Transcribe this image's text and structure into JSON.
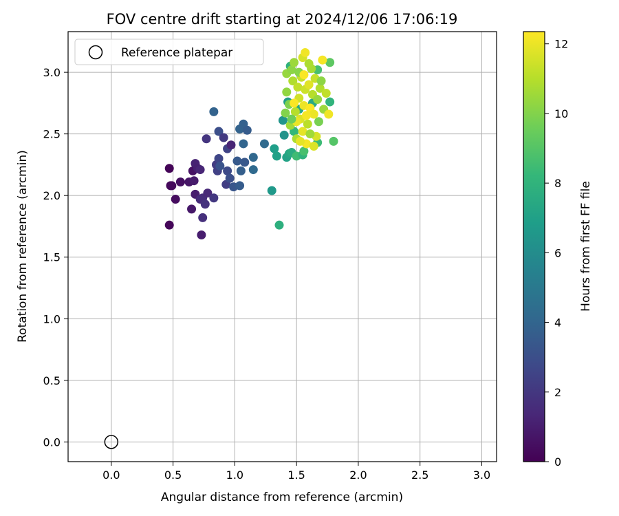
{
  "chart_data": {
    "type": "scatter",
    "title": "FOV centre drift starting at 2024/12/06 17:06:19",
    "xlabel": "Angular distance from reference (arcmin)",
    "ylabel": "Rotation from reference (arcmin)",
    "xlim": [
      -0.35,
      3.12
    ],
    "ylim": [
      -0.16,
      3.33
    ],
    "xticks": [
      "0.0",
      "0.5",
      "1.0",
      "1.5",
      "2.0",
      "2.5",
      "3.0"
    ],
    "yticks": [
      "0.0",
      "0.5",
      "1.0",
      "1.5",
      "2.0",
      "2.5",
      "3.0"
    ],
    "grid": true,
    "legend": {
      "placement": "top-left",
      "entries": [
        {
          "label": "Reference platepar",
          "marker": "open-circle"
        }
      ]
    },
    "reference_point": {
      "x": 0.0,
      "y": 0.0
    },
    "colorbar": {
      "label": "Hours from first FF file",
      "range": [
        0,
        12.35
      ],
      "ticks": [
        "0",
        "2",
        "4",
        "6",
        "8",
        "10",
        "12"
      ],
      "colormap": [
        "#440154",
        "#482878",
        "#3e4989",
        "#31688e",
        "#26828e",
        "#1f9e89",
        "#35b779",
        "#6ece58",
        "#b5de2b",
        "#fde725"
      ]
    },
    "points": [
      {
        "x": 0.47,
        "y": 2.22,
        "t": 0.1
      },
      {
        "x": 0.48,
        "y": 2.08,
        "t": 0.2
      },
      {
        "x": 0.49,
        "y": 2.08,
        "t": 0.3
      },
      {
        "x": 0.47,
        "y": 1.76,
        "t": 0.2
      },
      {
        "x": 0.52,
        "y": 1.97,
        "t": 0.4
      },
      {
        "x": 0.56,
        "y": 2.11,
        "t": 0.5
      },
      {
        "x": 0.63,
        "y": 2.11,
        "t": 0.7
      },
      {
        "x": 0.66,
        "y": 2.2,
        "t": 0.6
      },
      {
        "x": 0.67,
        "y": 2.12,
        "t": 0.9
      },
      {
        "x": 0.65,
        "y": 1.89,
        "t": 0.8
      },
      {
        "x": 0.68,
        "y": 2.01,
        "t": 1.0
      },
      {
        "x": 0.68,
        "y": 2.26,
        "t": 1.2
      },
      {
        "x": 0.7,
        "y": 2.22,
        "t": 1.1
      },
      {
        "x": 0.72,
        "y": 2.21,
        "t": 1.3
      },
      {
        "x": 0.72,
        "y": 1.97,
        "t": 1.5
      },
      {
        "x": 0.73,
        "y": 1.68,
        "t": 1.0
      },
      {
        "x": 0.74,
        "y": 1.98,
        "t": 1.6
      },
      {
        "x": 0.74,
        "y": 1.82,
        "t": 1.7
      },
      {
        "x": 0.76,
        "y": 1.93,
        "t": 1.8
      },
      {
        "x": 0.77,
        "y": 2.46,
        "t": 1.9
      },
      {
        "x": 0.78,
        "y": 2.02,
        "t": 1.4
      },
      {
        "x": 0.83,
        "y": 1.98,
        "t": 2.0
      },
      {
        "x": 0.85,
        "y": 2.25,
        "t": 2.2
      },
      {
        "x": 0.86,
        "y": 2.2,
        "t": 2.4
      },
      {
        "x": 0.87,
        "y": 2.3,
        "t": 2.6
      },
      {
        "x": 0.87,
        "y": 2.52,
        "t": 3.0
      },
      {
        "x": 0.88,
        "y": 2.24,
        "t": 3.2
      },
      {
        "x": 0.91,
        "y": 2.47,
        "t": 2.1
      },
      {
        "x": 0.93,
        "y": 2.09,
        "t": 2.3
      },
      {
        "x": 0.94,
        "y": 2.38,
        "t": 2.5
      },
      {
        "x": 0.94,
        "y": 2.2,
        "t": 2.8
      },
      {
        "x": 0.96,
        "y": 2.14,
        "t": 3.0
      },
      {
        "x": 0.97,
        "y": 2.41,
        "t": 1.3
      },
      {
        "x": 0.99,
        "y": 2.07,
        "t": 3.3
      },
      {
        "x": 1.02,
        "y": 2.28,
        "t": 3.5
      },
      {
        "x": 1.04,
        "y": 2.08,
        "t": 3.6
      },
      {
        "x": 1.04,
        "y": 2.54,
        "t": 3.9
      },
      {
        "x": 1.05,
        "y": 2.2,
        "t": 3.7
      },
      {
        "x": 1.07,
        "y": 2.58,
        "t": 3.8
      },
      {
        "x": 1.07,
        "y": 2.42,
        "t": 4.0
      },
      {
        "x": 1.08,
        "y": 2.27,
        "t": 3.4
      },
      {
        "x": 1.1,
        "y": 2.53,
        "t": 3.6
      },
      {
        "x": 1.15,
        "y": 2.31,
        "t": 4.1
      },
      {
        "x": 1.15,
        "y": 2.21,
        "t": 4.2
      },
      {
        "x": 0.83,
        "y": 2.68,
        "t": 3.9
      },
      {
        "x": 1.24,
        "y": 2.42,
        "t": 4.3
      },
      {
        "x": 1.3,
        "y": 2.04,
        "t": 6.6
      },
      {
        "x": 1.32,
        "y": 2.38,
        "t": 6.9
      },
      {
        "x": 1.34,
        "y": 2.32,
        "t": 7.0
      },
      {
        "x": 1.36,
        "y": 1.76,
        "t": 7.8
      },
      {
        "x": 1.39,
        "y": 2.61,
        "t": 6.4
      },
      {
        "x": 1.4,
        "y": 2.49,
        "t": 6.3
      },
      {
        "x": 1.42,
        "y": 2.31,
        "t": 7.1
      },
      {
        "x": 1.43,
        "y": 2.76,
        "t": 6.8
      },
      {
        "x": 1.44,
        "y": 2.34,
        "t": 7.3
      },
      {
        "x": 1.45,
        "y": 3.05,
        "t": 7.9
      },
      {
        "x": 1.46,
        "y": 2.35,
        "t": 7.6
      },
      {
        "x": 1.48,
        "y": 2.52,
        "t": 8.2
      },
      {
        "x": 1.5,
        "y": 2.32,
        "t": 8.5
      },
      {
        "x": 1.52,
        "y": 2.7,
        "t": 7.4
      },
      {
        "x": 1.55,
        "y": 2.33,
        "t": 8.0
      },
      {
        "x": 1.56,
        "y": 2.36,
        "t": 8.7
      },
      {
        "x": 1.63,
        "y": 2.75,
        "t": 7.5
      },
      {
        "x": 1.67,
        "y": 2.43,
        "t": 8.4
      },
      {
        "x": 1.8,
        "y": 2.44,
        "t": 9.0
      },
      {
        "x": 1.77,
        "y": 2.76,
        "t": 8.0
      },
      {
        "x": 1.77,
        "y": 3.08,
        "t": 9.2
      },
      {
        "x": 1.67,
        "y": 3.02,
        "t": 8.7
      },
      {
        "x": 1.41,
        "y": 2.67,
        "t": 10.0
      },
      {
        "x": 1.42,
        "y": 2.84,
        "t": 10.3
      },
      {
        "x": 1.42,
        "y": 2.99,
        "t": 10.4
      },
      {
        "x": 1.44,
        "y": 2.74,
        "t": 9.9
      },
      {
        "x": 1.45,
        "y": 2.57,
        "t": 10.6
      },
      {
        "x": 1.46,
        "y": 3.02,
        "t": 10.2
      },
      {
        "x": 1.47,
        "y": 2.93,
        "t": 10.9
      },
      {
        "x": 1.48,
        "y": 3.08,
        "t": 10.5
      },
      {
        "x": 1.49,
        "y": 2.68,
        "t": 11.0
      },
      {
        "x": 1.5,
        "y": 2.46,
        "t": 10.8
      },
      {
        "x": 1.51,
        "y": 2.88,
        "t": 11.2
      },
      {
        "x": 1.52,
        "y": 2.79,
        "t": 11.5
      },
      {
        "x": 1.53,
        "y": 2.62,
        "t": 11.7
      },
      {
        "x": 1.54,
        "y": 2.96,
        "t": 11.3
      },
      {
        "x": 1.55,
        "y": 3.12,
        "t": 11.6
      },
      {
        "x": 1.55,
        "y": 2.52,
        "t": 11.9
      },
      {
        "x": 1.56,
        "y": 2.73,
        "t": 12.0
      },
      {
        "x": 1.57,
        "y": 2.86,
        "t": 11.4
      },
      {
        "x": 1.57,
        "y": 3.16,
        "t": 12.1
      },
      {
        "x": 1.58,
        "y": 2.42,
        "t": 12.2
      },
      {
        "x": 1.59,
        "y": 2.58,
        "t": 11.1
      },
      {
        "x": 1.6,
        "y": 2.9,
        "t": 11.8
      },
      {
        "x": 1.61,
        "y": 2.71,
        "t": 12.3
      },
      {
        "x": 1.62,
        "y": 3.03,
        "t": 10.7
      },
      {
        "x": 1.63,
        "y": 2.82,
        "t": 11.0
      },
      {
        "x": 1.64,
        "y": 2.66,
        "t": 12.0
      },
      {
        "x": 1.65,
        "y": 2.95,
        "t": 11.3
      },
      {
        "x": 1.66,
        "y": 2.48,
        "t": 11.6
      },
      {
        "x": 1.67,
        "y": 2.78,
        "t": 10.4
      },
      {
        "x": 1.68,
        "y": 2.6,
        "t": 9.8
      },
      {
        "x": 1.69,
        "y": 2.87,
        "t": 10.9
      },
      {
        "x": 1.7,
        "y": 2.93,
        "t": 10.2
      },
      {
        "x": 1.71,
        "y": 3.1,
        "t": 12.2
      },
      {
        "x": 1.72,
        "y": 2.7,
        "t": 10.5
      },
      {
        "x": 1.74,
        "y": 2.83,
        "t": 11.2
      },
      {
        "x": 1.76,
        "y": 2.66,
        "t": 12.1
      },
      {
        "x": 1.48,
        "y": 2.75,
        "t": 12.3
      },
      {
        "x": 1.5,
        "y": 2.6,
        "t": 12.0
      },
      {
        "x": 1.53,
        "y": 2.44,
        "t": 11.9
      },
      {
        "x": 1.58,
        "y": 2.65,
        "t": 12.2
      },
      {
        "x": 1.61,
        "y": 2.5,
        "t": 10.6
      },
      {
        "x": 1.64,
        "y": 2.4,
        "t": 11.7
      },
      {
        "x": 1.52,
        "y": 3.0,
        "t": 10.1
      },
      {
        "x": 1.46,
        "y": 2.62,
        "t": 9.6
      },
      {
        "x": 1.56,
        "y": 2.98,
        "t": 12.3
      },
      {
        "x": 1.6,
        "y": 3.07,
        "t": 10.8
      }
    ]
  }
}
